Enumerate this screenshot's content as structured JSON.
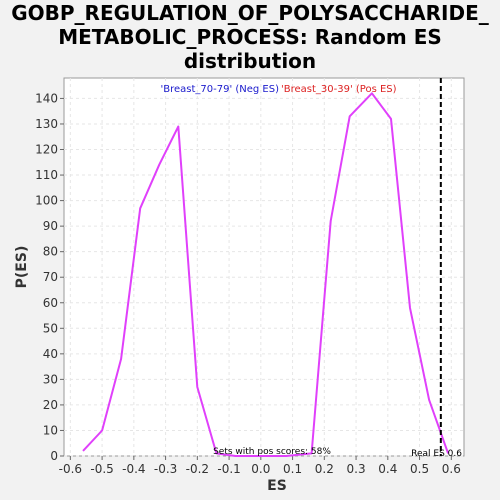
{
  "chart_data": {
    "type": "line",
    "title_lines": [
      "GOBP_REGULATION_OF_POLYSACCHARIDE_",
      "METABOLIC_PROCESS: Random ES",
      "distribution"
    ],
    "xlabel": "ES",
    "ylabel": "P(ES)",
    "xlim": [
      -0.62,
      0.64
    ],
    "ylim": [
      0,
      148
    ],
    "x_ticks": [
      -0.6,
      -0.5,
      -0.4,
      -0.3,
      -0.2,
      -0.1,
      0.0,
      0.1,
      0.2,
      0.3,
      0.4,
      0.5,
      0.6
    ],
    "x_tick_labels": [
      "-0.6",
      "-0.5",
      "-0.4",
      "-0.3",
      "-0.2",
      "-0.1",
      "0.0",
      "0.1",
      "0.2",
      "0.3",
      "0.4",
      "0.5",
      "0.6"
    ],
    "y_ticks": [
      0,
      10,
      20,
      30,
      40,
      50,
      60,
      70,
      80,
      90,
      100,
      110,
      120,
      130,
      140
    ],
    "y_tick_labels": [
      "0",
      "10",
      "20",
      "30",
      "40",
      "50",
      "60",
      "70",
      "80",
      "90",
      "100",
      "110",
      "120",
      "130",
      "140"
    ],
    "grid": true,
    "series": [
      {
        "color": "#e040fb",
        "x": [
          -0.56,
          -0.5,
          -0.44,
          -0.38,
          -0.32,
          -0.26,
          -0.2,
          -0.14,
          -0.08,
          0.0,
          0.08,
          0.16,
          0.22,
          0.28,
          0.35,
          0.41,
          0.47,
          0.53,
          0.59
        ],
        "y": [
          2,
          10,
          38,
          97,
          114,
          129,
          27,
          1,
          0,
          0,
          0,
          1,
          92,
          133,
          142,
          132,
          58,
          22,
          1
        ]
      }
    ],
    "legend": {
      "neg_label": "'Breast_70-79' (Neg ES)",
      "neg_color": "#1a1acc",
      "pos_label": "'Breast_30-39' (Pos ES)",
      "pos_color": "#dd2222"
    },
    "annotations": {
      "pos_scores_text": "Sets with pos scores: 58%",
      "real_es_text": "Real ES 0.6",
      "real_es_value": 0.567
    }
  }
}
